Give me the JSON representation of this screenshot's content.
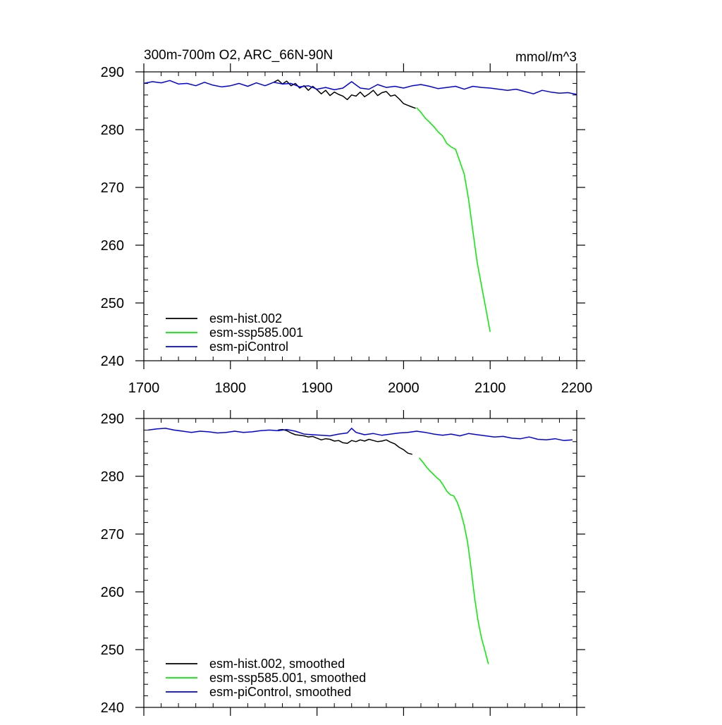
{
  "header": {
    "title": "300m-700m O2, ARC_66N-90N",
    "units": "mmol/m^3"
  },
  "colors": {
    "hist": "#000000",
    "ssp": "#00ee00",
    "piControl": "#0000ee"
  },
  "chart_data": [
    {
      "type": "line",
      "panel": "top",
      "title": "300m-700m O2, ARC_66N-90N",
      "ylabel": "mmol/m^3",
      "xlim": [
        1700,
        2200
      ],
      "ylim": [
        240,
        290
      ],
      "x_ticks": [
        1700,
        1800,
        1900,
        2000,
        2100,
        2200
      ],
      "x_tick_labels": [
        "1700",
        "1800",
        "1900",
        "2000",
        "2100",
        "2200"
      ],
      "y_ticks": [
        240,
        250,
        260,
        270,
        280,
        290
      ],
      "y_tick_labels": [
        "240",
        "250",
        "260",
        "270",
        "280",
        "290"
      ],
      "legend_position": "bottom-left",
      "legend": [
        "esm-hist.002",
        "esm-ssp585.001",
        "esm-piControl"
      ],
      "series": [
        {
          "name": "esm-hist.002",
          "color_key": "hist",
          "x": [
            1850,
            1855,
            1860,
            1865,
            1870,
            1875,
            1880,
            1885,
            1890,
            1895,
            1900,
            1905,
            1910,
            1915,
            1920,
            1925,
            1930,
            1935,
            1940,
            1945,
            1950,
            1955,
            1960,
            1965,
            1970,
            1975,
            1980,
            1985,
            1990,
            1995,
            2000,
            2005,
            2010,
            2014
          ],
          "y": [
            288.2,
            288.6,
            287.9,
            288.4,
            287.6,
            288.0,
            287.2,
            287.6,
            286.8,
            287.5,
            286.9,
            286.2,
            286.8,
            285.9,
            286.5,
            286.1,
            285.8,
            285.2,
            286.0,
            285.8,
            286.5,
            285.7,
            286.2,
            286.8,
            285.9,
            286.4,
            286.6,
            285.8,
            286.0,
            285.3,
            284.5,
            284.2,
            283.9,
            283.7
          ]
        },
        {
          "name": "esm-ssp585.001",
          "color_key": "ssp",
          "x": [
            2015,
            2020,
            2025,
            2030,
            2035,
            2040,
            2045,
            2050,
            2055,
            2060,
            2065,
            2070,
            2075,
            2080,
            2085,
            2090,
            2095,
            2100
          ],
          "y": [
            283.8,
            283.0,
            282.0,
            281.3,
            280.5,
            279.6,
            278.9,
            277.6,
            277.0,
            276.6,
            274.5,
            272.3,
            268.0,
            262.5,
            257.0,
            253.0,
            249.0,
            245.0
          ]
        },
        {
          "name": "esm-piControl",
          "color_key": "piControl",
          "x": [
            1700,
            1710,
            1720,
            1730,
            1740,
            1750,
            1760,
            1770,
            1780,
            1790,
            1800,
            1810,
            1820,
            1830,
            1840,
            1850,
            1860,
            1870,
            1880,
            1890,
            1900,
            1910,
            1920,
            1930,
            1940,
            1950,
            1960,
            1970,
            1980,
            1990,
            2000,
            2010,
            2020,
            2030,
            2040,
            2050,
            2060,
            2070,
            2080,
            2090,
            2100,
            2110,
            2120,
            2130,
            2140,
            2150,
            2160,
            2170,
            2180,
            2190,
            2200
          ],
          "y": [
            288.0,
            288.3,
            288.1,
            288.5,
            287.9,
            288.0,
            287.6,
            288.2,
            287.7,
            287.4,
            287.6,
            288.0,
            287.5,
            288.1,
            287.6,
            288.2,
            287.9,
            288.0,
            287.4,
            287.6,
            287.0,
            287.3,
            286.9,
            287.2,
            288.3,
            287.2,
            287.0,
            287.8,
            287.3,
            287.5,
            287.2,
            287.6,
            287.8,
            287.5,
            287.1,
            287.3,
            287.5,
            287.0,
            287.5,
            287.3,
            287.2,
            287.0,
            286.8,
            287.0,
            286.6,
            286.2,
            286.8,
            286.5,
            286.3,
            286.4,
            286.1
          ]
        }
      ]
    },
    {
      "type": "line",
      "panel": "bottom",
      "title": "",
      "xlim": [
        1700,
        2200
      ],
      "ylim": [
        240,
        290
      ],
      "x_ticks": [
        1700,
        1800,
        1900,
        2000,
        2100,
        2200
      ],
      "y_ticks": [
        240,
        250,
        260,
        270,
        280,
        290
      ],
      "y_tick_labels": [
        "240",
        "250",
        "260",
        "270",
        "280",
        "290"
      ],
      "legend_position": "bottom-left",
      "legend": [
        "esm-hist.002, smoothed",
        "esm-ssp585.001, smoothed",
        "esm-piControl, smoothed"
      ],
      "series": [
        {
          "name": "esm-hist.002, smoothed",
          "color_key": "hist",
          "x": [
            1855,
            1860,
            1865,
            1870,
            1875,
            1880,
            1885,
            1890,
            1895,
            1900,
            1905,
            1910,
            1915,
            1920,
            1925,
            1930,
            1935,
            1940,
            1945,
            1950,
            1955,
            1960,
            1965,
            1970,
            1975,
            1980,
            1985,
            1990,
            1995,
            2000,
            2005,
            2010
          ],
          "y": [
            288.0,
            288.1,
            287.9,
            287.5,
            287.2,
            287.1,
            287.0,
            286.8,
            286.9,
            286.6,
            286.3,
            286.5,
            286.4,
            286.1,
            286.2,
            285.8,
            285.7,
            286.2,
            286.0,
            286.3,
            286.1,
            286.4,
            286.2,
            286.0,
            286.1,
            286.3,
            285.9,
            285.6,
            285.0,
            284.6,
            284.0,
            283.8
          ]
        },
        {
          "name": "esm-ssp585.001, smoothed",
          "color_key": "ssp",
          "x": [
            2018,
            2022,
            2026,
            2030,
            2034,
            2038,
            2042,
            2046,
            2050,
            2054,
            2058,
            2062,
            2066,
            2070,
            2074,
            2078,
            2082,
            2086,
            2090,
            2094,
            2098
          ],
          "y": [
            283.2,
            282.5,
            281.7,
            281.0,
            280.4,
            279.8,
            279.3,
            278.4,
            277.4,
            276.8,
            276.6,
            275.5,
            273.8,
            271.5,
            268.5,
            264.0,
            259.0,
            255.0,
            252.0,
            249.8,
            247.5
          ]
        },
        {
          "name": "esm-piControl, smoothed",
          "color_key": "piControl",
          "x": [
            1705,
            1715,
            1725,
            1735,
            1745,
            1755,
            1765,
            1775,
            1785,
            1795,
            1805,
            1815,
            1825,
            1835,
            1845,
            1855,
            1865,
            1875,
            1885,
            1895,
            1905,
            1915,
            1925,
            1935,
            1940,
            1945,
            1955,
            1965,
            1975,
            1985,
            1995,
            2005,
            2015,
            2025,
            2035,
            2045,
            2055,
            2065,
            2075,
            2085,
            2095,
            2105,
            2115,
            2125,
            2135,
            2145,
            2155,
            2165,
            2175,
            2185,
            2195
          ],
          "y": [
            288.0,
            288.2,
            288.3,
            288.0,
            287.8,
            287.6,
            287.8,
            287.7,
            287.5,
            287.6,
            287.8,
            287.6,
            287.7,
            287.9,
            288.0,
            287.9,
            288.1,
            287.8,
            287.3,
            287.2,
            287.1,
            287.0,
            287.3,
            287.5,
            288.3,
            287.6,
            287.2,
            287.4,
            287.1,
            287.3,
            287.5,
            287.6,
            287.8,
            287.6,
            287.3,
            287.1,
            287.3,
            287.0,
            287.4,
            287.2,
            287.0,
            286.8,
            286.9,
            286.6,
            286.5,
            286.8,
            286.4,
            286.3,
            286.5,
            286.2,
            286.3
          ]
        }
      ]
    }
  ]
}
